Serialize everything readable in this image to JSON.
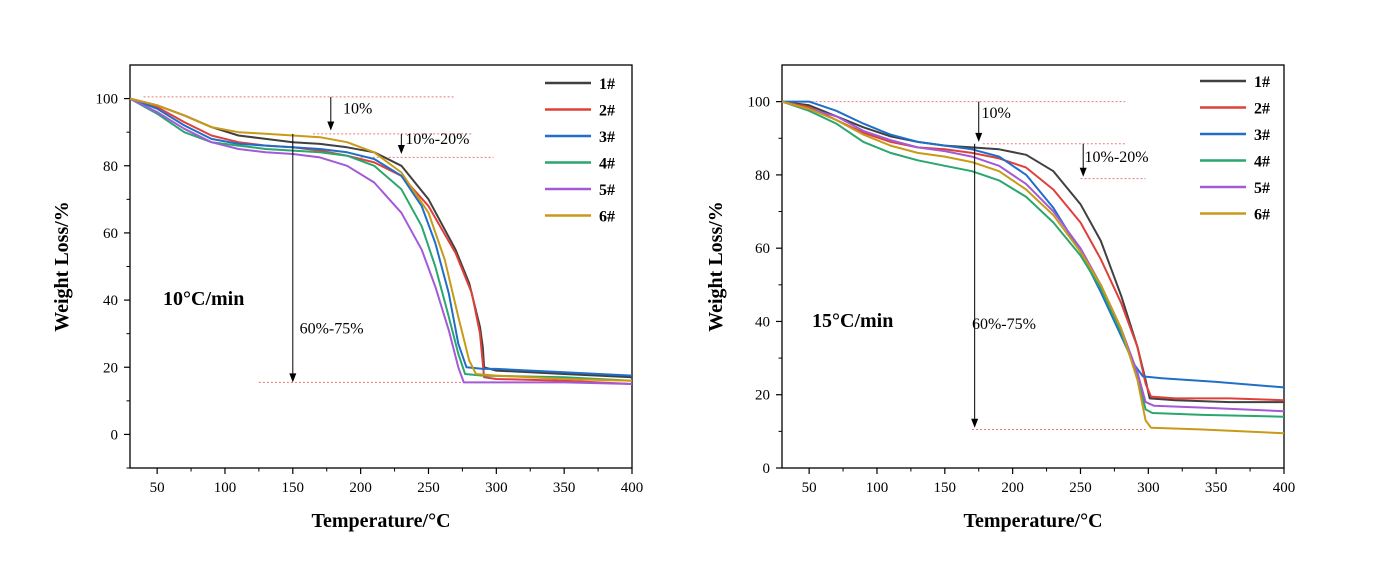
{
  "chart_data": [
    {
      "type": "line",
      "rate_label": "10°C/min",
      "xlabel": "Temperature/°C",
      "ylabel": "Weight Loss/%",
      "xlim": [
        30,
        400
      ],
      "ylim": [
        -10,
        110
      ],
      "xticks": [
        50,
        100,
        150,
        200,
        250,
        300,
        350,
        400
      ],
      "yticks": [
        0,
        20,
        40,
        60,
        80,
        100
      ],
      "legend_position": "top-right",
      "series": [
        {
          "name": "1#",
          "color": "#404040",
          "points": [
            [
              30,
              100
            ],
            [
              50,
              98
            ],
            [
              70,
              95
            ],
            [
              90,
              91.5
            ],
            [
              110,
              89
            ],
            [
              130,
              88
            ],
            [
              150,
              87
            ],
            [
              170,
              86.5
            ],
            [
              190,
              85.5
            ],
            [
              210,
              84
            ],
            [
              230,
              80
            ],
            [
              250,
              70
            ],
            [
              270,
              55
            ],
            [
              280,
              45
            ],
            [
              288,
              32
            ],
            [
              290,
              26
            ],
            [
              291,
              20
            ],
            [
              300,
              19
            ],
            [
              350,
              18
            ],
            [
              400,
              17
            ]
          ]
        },
        {
          "name": "2#",
          "color": "#e0403a",
          "points": [
            [
              30,
              100
            ],
            [
              50,
              97.5
            ],
            [
              70,
              93
            ],
            [
              90,
              89
            ],
            [
              110,
              87
            ],
            [
              130,
              86
            ],
            [
              150,
              85.5
            ],
            [
              170,
              84.5
            ],
            [
              190,
              83
            ],
            [
              210,
              81
            ],
            [
              230,
              77
            ],
            [
              250,
              68
            ],
            [
              270,
              54
            ],
            [
              282,
              42
            ],
            [
              288,
              30
            ],
            [
              291,
              17
            ],
            [
              300,
              16.5
            ],
            [
              350,
              16
            ],
            [
              400,
              15
            ]
          ]
        },
        {
          "name": "3#",
          "color": "#1f6fc8",
          "points": [
            [
              30,
              100
            ],
            [
              50,
              97
            ],
            [
              70,
              92
            ],
            [
              90,
              88
            ],
            [
              110,
              86.5
            ],
            [
              130,
              86
            ],
            [
              150,
              85.5
            ],
            [
              170,
              85
            ],
            [
              190,
              84
            ],
            [
              210,
              82
            ],
            [
              230,
              77
            ],
            [
              245,
              68
            ],
            [
              255,
              57
            ],
            [
              265,
              42
            ],
            [
              272,
              27
            ],
            [
              278,
              20
            ],
            [
              290,
              19.5
            ],
            [
              300,
              19.5
            ],
            [
              350,
              18.5
            ],
            [
              400,
              17.5
            ]
          ]
        },
        {
          "name": "4#",
          "color": "#2aa66e",
          "points": [
            [
              30,
              100
            ],
            [
              50,
              95.5
            ],
            [
              70,
              90
            ],
            [
              90,
              87
            ],
            [
              110,
              86
            ],
            [
              130,
              85
            ],
            [
              150,
              84.5
            ],
            [
              170,
              84
            ],
            [
              190,
              83
            ],
            [
              210,
              80
            ],
            [
              230,
              73
            ],
            [
              245,
              62
            ],
            [
              255,
              50
            ],
            [
              265,
              35
            ],
            [
              272,
              24
            ],
            [
              277,
              18
            ],
            [
              290,
              17.5
            ],
            [
              350,
              17
            ],
            [
              400,
              16
            ]
          ]
        },
        {
          "name": "5#",
          "color": "#a35ad8",
          "points": [
            [
              30,
              100
            ],
            [
              50,
              96
            ],
            [
              70,
              91
            ],
            [
              90,
              87
            ],
            [
              110,
              85
            ],
            [
              130,
              84
            ],
            [
              150,
              83.5
            ],
            [
              170,
              82.5
            ],
            [
              190,
              80
            ],
            [
              210,
              75
            ],
            [
              230,
              66
            ],
            [
              245,
              55
            ],
            [
              255,
              44
            ],
            [
              265,
              31
            ],
            [
              272,
              20
            ],
            [
              276,
              15.5
            ],
            [
              300,
              15.5
            ],
            [
              350,
              15.5
            ],
            [
              400,
              15
            ]
          ]
        },
        {
          "name": "6#",
          "color": "#c89a18",
          "points": [
            [
              30,
              100
            ],
            [
              50,
              98
            ],
            [
              70,
              95
            ],
            [
              90,
              91.5
            ],
            [
              110,
              90
            ],
            [
              130,
              89.5
            ],
            [
              150,
              89
            ],
            [
              170,
              88.5
            ],
            [
              190,
              87
            ],
            [
              210,
              84
            ],
            [
              230,
              78
            ],
            [
              250,
              66
            ],
            [
              262,
              52
            ],
            [
              272,
              35
            ],
            [
              280,
              22
            ],
            [
              285,
              18
            ],
            [
              300,
              17.5
            ],
            [
              350,
              16.5
            ],
            [
              400,
              16
            ]
          ]
        }
      ],
      "annotations": [
        {
          "text": "10%",
          "x": 187,
          "y": 95.5
        },
        {
          "text": "10%-20%",
          "x": 233,
          "y": 86.5
        },
        {
          "text": "60%-75%",
          "x": 155,
          "y": 30
        }
      ],
      "reference_lines": [
        [
          40,
          270,
          100.5
        ],
        [
          165,
          282,
          89.5
        ],
        [
          200,
          298,
          82.5
        ],
        [
          125,
          290,
          15.5
        ]
      ],
      "arrows": [
        [
          178,
          100.5,
          90.5
        ],
        [
          230,
          89.5,
          83.5
        ],
        [
          150,
          89.5,
          15.5
        ]
      ]
    },
    {
      "type": "line",
      "rate_label": "15°C/min",
      "xlabel": "Temperature/°C",
      "ylabel": "Weight Loss/%",
      "xlim": [
        30,
        400
      ],
      "ylim": [
        0,
        110
      ],
      "xticks": [
        50,
        100,
        150,
        200,
        250,
        300,
        350,
        400
      ],
      "yticks": [
        0,
        20,
        40,
        60,
        80,
        100
      ],
      "legend_position": "top-right",
      "series": [
        {
          "name": "1#",
          "color": "#404040",
          "points": [
            [
              30,
              100
            ],
            [
              50,
              99
            ],
            [
              70,
              96
            ],
            [
              90,
              93
            ],
            [
              110,
              90.5
            ],
            [
              130,
              89
            ],
            [
              150,
              88
            ],
            [
              170,
              87.5
            ],
            [
              190,
              87
            ],
            [
              210,
              85.5
            ],
            [
              230,
              81
            ],
            [
              250,
              72
            ],
            [
              265,
              62
            ],
            [
              280,
              47
            ],
            [
              292,
              33
            ],
            [
              298,
              24
            ],
            [
              301,
              19
            ],
            [
              320,
              18.5
            ],
            [
              360,
              18
            ],
            [
              400,
              18
            ]
          ]
        },
        {
          "name": "2#",
          "color": "#e0403a",
          "points": [
            [
              30,
              100
            ],
            [
              50,
              98.5
            ],
            [
              70,
              95
            ],
            [
              90,
              91.5
            ],
            [
              110,
              89
            ],
            [
              130,
              87.5
            ],
            [
              150,
              87
            ],
            [
              170,
              86
            ],
            [
              190,
              84.5
            ],
            [
              210,
              82
            ],
            [
              230,
              76
            ],
            [
              250,
              67
            ],
            [
              265,
              57
            ],
            [
              280,
              45
            ],
            [
              292,
              33
            ],
            [
              298,
              23
            ],
            [
              302,
              19.5
            ],
            [
              320,
              19
            ],
            [
              360,
              19
            ],
            [
              400,
              18.5
            ]
          ]
        },
        {
          "name": "3#",
          "color": "#1f6fc8",
          "points": [
            [
              30,
              100
            ],
            [
              50,
              100
            ],
            [
              70,
              97.5
            ],
            [
              90,
              94
            ],
            [
              110,
              91
            ],
            [
              130,
              89
            ],
            [
              150,
              88
            ],
            [
              170,
              87
            ],
            [
              190,
              85
            ],
            [
              210,
              80
            ],
            [
              230,
              71
            ],
            [
              250,
              59
            ],
            [
              265,
              48
            ],
            [
              280,
              36
            ],
            [
              290,
              28
            ],
            [
              296,
              25
            ],
            [
              310,
              24.5
            ],
            [
              350,
              23.5
            ],
            [
              400,
              22
            ]
          ]
        },
        {
          "name": "4#",
          "color": "#2aa66e",
          "points": [
            [
              30,
              100
            ],
            [
              50,
              97.5
            ],
            [
              70,
              94
            ],
            [
              90,
              89
            ],
            [
              110,
              86
            ],
            [
              130,
              84
            ],
            [
              150,
              82.5
            ],
            [
              170,
              81
            ],
            [
              190,
              78.5
            ],
            [
              210,
              74
            ],
            [
              230,
              67
            ],
            [
              250,
              58
            ],
            [
              265,
              49
            ],
            [
              280,
              37
            ],
            [
              292,
              25
            ],
            [
              298,
              16
            ],
            [
              303,
              15
            ],
            [
              340,
              14.5
            ],
            [
              400,
              14
            ]
          ]
        },
        {
          "name": "5#",
          "color": "#a35ad8",
          "points": [
            [
              30,
              100
            ],
            [
              50,
              98
            ],
            [
              70,
              96
            ],
            [
              90,
              92
            ],
            [
              110,
              89.5
            ],
            [
              130,
              87.5
            ],
            [
              150,
              86.5
            ],
            [
              170,
              85
            ],
            [
              190,
              82.5
            ],
            [
              210,
              77.5
            ],
            [
              230,
              70
            ],
            [
              250,
              60
            ],
            [
              265,
              50
            ],
            [
              280,
              38
            ],
            [
              292,
              26
            ],
            [
              298,
              18
            ],
            [
              304,
              17
            ],
            [
              340,
              16.5
            ],
            [
              400,
              15.5
            ]
          ]
        },
        {
          "name": "6#",
          "color": "#c89a18",
          "points": [
            [
              30,
              100
            ],
            [
              50,
              98
            ],
            [
              70,
              95
            ],
            [
              90,
              91
            ],
            [
              110,
              88
            ],
            [
              130,
              86
            ],
            [
              150,
              85
            ],
            [
              170,
              83.5
            ],
            [
              190,
              81
            ],
            [
              210,
              76
            ],
            [
              230,
              69
            ],
            [
              250,
              59
            ],
            [
              265,
              50
            ],
            [
              280,
              38
            ],
            [
              292,
              24
            ],
            [
              298,
              13
            ],
            [
              302,
              11
            ],
            [
              340,
              10.5
            ],
            [
              400,
              9.5
            ]
          ]
        }
      ],
      "annotations": [
        {
          "text": "10%",
          "x": 177,
          "y": 95.5
        },
        {
          "text": "10%-20%",
          "x": 253,
          "y": 83.5
        },
        {
          "text": "60%-75%",
          "x": 170,
          "y": 38
        }
      ],
      "reference_lines": [
        [
          40,
          283,
          100
        ],
        [
          178,
          283,
          88.5
        ],
        [
          250,
          298,
          79
        ],
        [
          170,
          298,
          10.5
        ]
      ],
      "arrows": [
        [
          175,
          100,
          89
        ],
        [
          252,
          88.5,
          79.5
        ],
        [
          172,
          88.5,
          11
        ]
      ]
    }
  ]
}
